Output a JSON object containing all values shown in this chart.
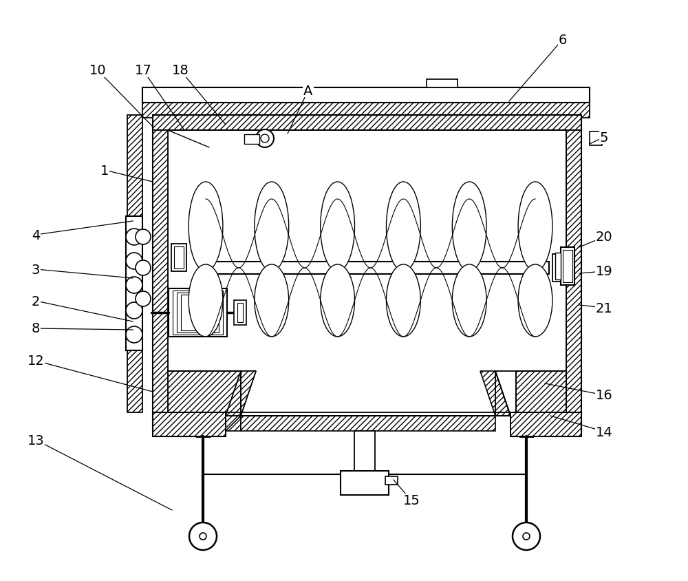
{
  "bg_color": "#ffffff",
  "line_color": "#000000",
  "wall": 22,
  "hatch": "////",
  "labels": [
    "1",
    "2",
    "3",
    "4",
    "5",
    "6",
    "8",
    "10",
    "12",
    "13",
    "14",
    "15",
    "16",
    "17",
    "18",
    "19",
    "20",
    "21",
    "A"
  ]
}
